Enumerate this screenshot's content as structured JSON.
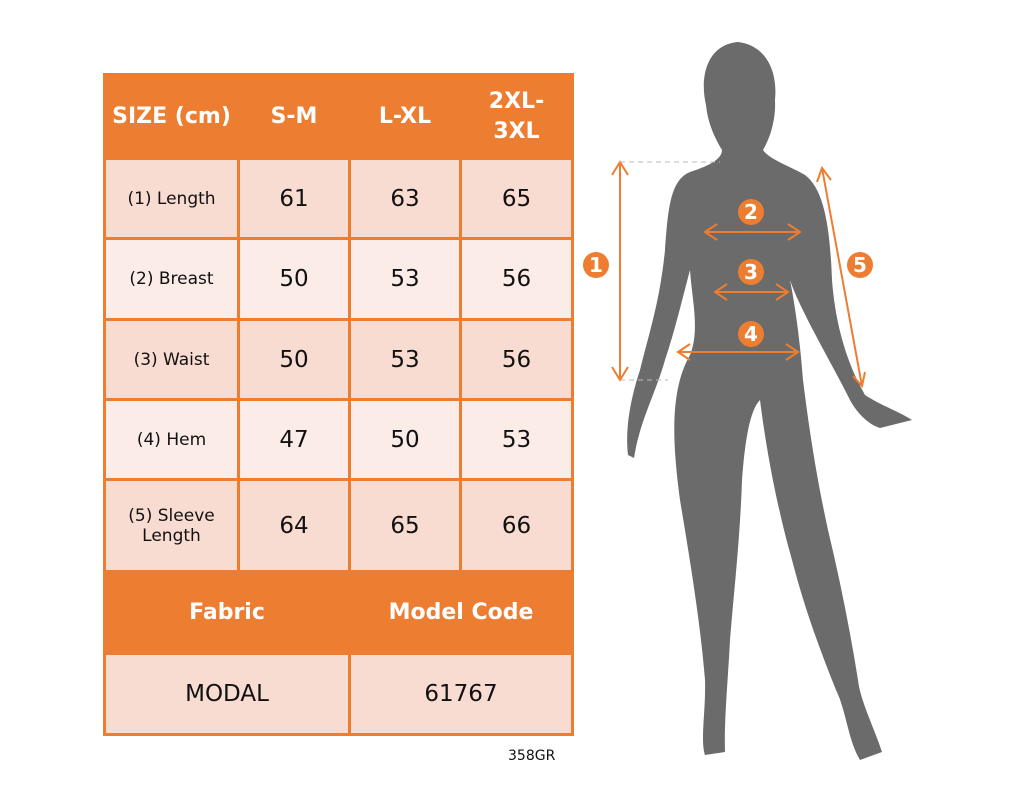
{
  "table": {
    "header": [
      "SIZE (cm)",
      "S-M",
      "L-XL",
      "2XL-3XL"
    ],
    "rows": [
      {
        "label": "(1) Length",
        "values": [
          "61",
          "63",
          "65"
        ]
      },
      {
        "label": "(2) Breast",
        "values": [
          "50",
          "53",
          "56"
        ]
      },
      {
        "label": "(3) Waist",
        "values": [
          "50",
          "53",
          "56"
        ]
      },
      {
        "label": "(4) Hem",
        "values": [
          "47",
          "50",
          "53"
        ]
      },
      {
        "label": "(5) Sleeve Length",
        "values": [
          "64",
          "65",
          "66"
        ]
      }
    ],
    "info_header": [
      "Fabric",
      "Model Code"
    ],
    "info_values": [
      "MODAL",
      "61767"
    ]
  },
  "product_code": "358GR",
  "markers": [
    "1",
    "2",
    "3",
    "4",
    "5"
  ],
  "colors": {
    "accent": "#ed7d31",
    "row_dark": "#f8dbd1",
    "row_light": "#fbece7",
    "silhouette": "#6b6b6b"
  }
}
